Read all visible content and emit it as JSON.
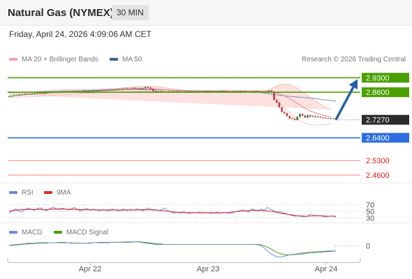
{
  "header": {
    "title": "Natural Gas (NYMEX)",
    "timeframe": "30 MIN"
  },
  "datetime": "Friday, April 24, 2026 4:09:06 AM CET",
  "legend": {
    "ma20": "MA 20 + Bollinger Bands",
    "ma50": "MA 50",
    "credit": "Research © 2026 Trading Central",
    "rsi": "RSI",
    "rsi_ma": "9MA",
    "macd": "MACD",
    "macd_signal": "MACD Signal"
  },
  "colors": {
    "candle": "#c53b3b",
    "ma20": "#f08080",
    "ma50": "#7a94b8",
    "bollinger_fill": "#fcd6d6",
    "resistance": "#49a000",
    "pivot": "#2e6fe0",
    "support": "#f08080",
    "last_price": "#2b2b2b",
    "arrow": "#2a5fa5",
    "rsi": "#6b8bdc",
    "rsi_ma": "#e12a2a",
    "macd": "#6b8bdc",
    "macd_signal": "#49a000"
  },
  "chart_data": [
    {
      "type": "candlestick",
      "title": "Natural Gas (NYMEX) 30 MIN",
      "x_ticks": [
        "Apr 22",
        "Apr 23",
        "Apr 24"
      ],
      "ylim": [
        2.46,
        2.945
      ],
      "close": [
        2.84,
        2.842,
        2.845,
        2.846,
        2.848,
        2.849,
        2.851,
        2.852,
        2.85,
        2.853,
        2.855,
        2.855,
        2.856,
        2.853,
        2.857,
        2.859,
        2.86,
        2.862,
        2.86,
        2.858,
        2.861,
        2.864,
        2.864,
        2.863,
        2.862,
        2.864,
        2.865,
        2.863,
        2.864,
        2.867,
        2.865,
        2.866,
        2.866,
        2.868,
        2.868,
        2.869,
        2.87,
        2.869,
        2.871,
        2.872,
        2.872,
        2.874,
        2.875,
        2.876,
        2.877,
        2.879,
        2.878,
        2.877,
        2.881,
        2.879,
        2.876,
        2.879,
        2.88,
        2.885,
        2.883,
        2.876,
        2.866,
        2.865,
        2.865,
        2.864,
        2.861,
        2.863,
        2.864,
        2.862,
        2.864,
        2.864,
        2.862,
        2.862,
        2.863,
        2.861,
        2.864,
        2.863,
        2.862,
        2.863,
        2.861,
        2.861,
        2.865,
        2.864,
        2.865,
        2.863,
        2.862,
        2.865,
        2.865,
        2.867,
        2.865,
        2.862,
        2.864,
        2.864,
        2.865,
        2.866,
        2.864,
        2.866,
        2.862,
        2.862,
        2.865,
        2.864,
        2.866,
        2.862,
        2.863,
        2.861,
        2.861,
        2.868,
        2.862,
        2.823,
        2.81,
        2.787,
        2.765,
        2.759,
        2.745,
        2.734,
        2.732,
        2.726,
        2.741,
        2.755,
        2.747,
        2.738,
        2.749,
        2.742,
        2.745,
        2.741,
        2.742,
        2.738,
        2.737,
        2.735,
        2.734,
        2.734,
        2.733,
        2.727
      ],
      "ma20": [
        2.841,
        2.842,
        2.843,
        2.844,
        2.845,
        2.846,
        2.847,
        2.848,
        2.849,
        2.85,
        2.851,
        2.852,
        2.853,
        2.854,
        2.855,
        2.856,
        2.857,
        2.858,
        2.858,
        2.859,
        2.859,
        2.86,
        2.86,
        2.861,
        2.861,
        2.862,
        2.862,
        2.862,
        2.863,
        2.863,
        2.864,
        2.864,
        2.865,
        2.865,
        2.866,
        2.866,
        2.867,
        2.867,
        2.868,
        2.868,
        2.869,
        2.869,
        2.87,
        2.871,
        2.871,
        2.872,
        2.873,
        2.873,
        2.874,
        2.875,
        2.875,
        2.876,
        2.876,
        2.876,
        2.877,
        2.877,
        2.876,
        2.875,
        2.874,
        2.873,
        2.872,
        2.871,
        2.87,
        2.869,
        2.869,
        2.868,
        2.868,
        2.867,
        2.867,
        2.866,
        2.866,
        2.865,
        2.865,
        2.864,
        2.864,
        2.864,
        2.864,
        2.864,
        2.864,
        2.864,
        2.864,
        2.864,
        2.864,
        2.864,
        2.864,
        2.864,
        2.864,
        2.864,
        2.864,
        2.864,
        2.864,
        2.864,
        2.864,
        2.864,
        2.864,
        2.864,
        2.864,
        2.864,
        2.864,
        2.864,
        2.864,
        2.863,
        2.862,
        2.86,
        2.857,
        2.853,
        2.848,
        2.842,
        2.836,
        2.829,
        2.822,
        2.814,
        2.806,
        2.798,
        2.79,
        2.783,
        2.776,
        2.77,
        2.765,
        2.76,
        2.756,
        2.752,
        2.749,
        2.746,
        2.744,
        2.741
      ],
      "bb_upper": [
        2.849,
        2.85,
        2.851,
        2.852,
        2.853,
        2.854,
        2.856,
        2.858,
        2.859,
        2.861,
        2.862,
        2.864,
        2.865,
        2.866,
        2.867,
        2.868,
        2.869,
        2.87,
        2.871,
        2.871,
        2.871,
        2.872,
        2.872,
        2.872,
        2.872,
        2.872,
        2.872,
        2.872,
        2.872,
        2.872,
        2.872,
        2.873,
        2.873,
        2.873,
        2.874,
        2.874,
        2.875,
        2.875,
        2.876,
        2.877,
        2.877,
        2.878,
        2.879,
        2.88,
        2.881,
        2.882,
        2.883,
        2.884,
        2.885,
        2.886,
        2.887,
        2.888,
        2.889,
        2.889,
        2.889,
        2.889,
        2.888,
        2.887,
        2.886,
        2.885,
        2.883,
        2.881,
        2.879,
        2.877,
        2.875,
        2.873,
        2.872,
        2.871,
        2.87,
        2.869,
        2.868,
        2.868,
        2.868,
        2.868,
        2.868,
        2.868,
        2.868,
        2.868,
        2.868,
        2.868,
        2.868,
        2.868,
        2.868,
        2.868,
        2.868,
        2.868,
        2.868,
        2.868,
        2.868,
        2.868,
        2.868,
        2.868,
        2.868,
        2.868,
        2.868,
        2.868,
        2.868,
        2.868,
        2.868,
        2.868,
        2.869,
        2.873,
        2.878,
        2.884,
        2.89,
        2.895,
        2.898,
        2.899,
        2.899,
        2.897,
        2.893,
        2.887,
        2.88,
        2.872,
        2.863,
        2.854,
        2.845,
        2.836,
        2.827,
        2.818,
        2.81,
        2.802,
        2.795,
        2.788,
        2.781,
        2.776
      ],
      "bb_lower": [
        2.833,
        2.834,
        2.835,
        2.836,
        2.837,
        2.838,
        2.838,
        2.838,
        2.839,
        2.839,
        2.84,
        2.84,
        2.841,
        2.842,
        2.843,
        2.844,
        2.845,
        2.846,
        2.845,
        2.847,
        2.847,
        2.848,
        2.848,
        2.85,
        2.85,
        2.852,
        2.852,
        2.852,
        2.854,
        2.854,
        2.856,
        2.855,
        2.857,
        2.857,
        2.858,
        2.858,
        2.859,
        2.859,
        2.86,
        2.859,
        2.861,
        2.86,
        2.861,
        2.862,
        2.861,
        2.862,
        2.863,
        2.862,
        2.863,
        2.864,
        2.863,
        2.864,
        2.863,
        2.863,
        2.865,
        2.865,
        2.864,
        2.863,
        2.862,
        2.861,
        2.861,
        2.861,
        2.861,
        2.861,
        2.863,
        2.863,
        2.864,
        2.863,
        2.864,
        2.863,
        2.864,
        2.862,
        2.862,
        2.86,
        2.86,
        2.86,
        2.86,
        2.86,
        2.86,
        2.86,
        2.86,
        2.86,
        2.86,
        2.86,
        2.86,
        2.86,
        2.86,
        2.86,
        2.86,
        2.86,
        2.86,
        2.86,
        2.86,
        2.86,
        2.86,
        2.86,
        2.86,
        2.86,
        2.86,
        2.86,
        2.859,
        2.853,
        2.846,
        2.836,
        2.824,
        2.811,
        2.798,
        2.785,
        2.773,
        2.761,
        2.751,
        2.741,
        2.732,
        2.724,
        2.717,
        2.712,
        2.707,
        2.704,
        2.703,
        2.702,
        2.702,
        2.702,
        2.703,
        2.704,
        2.707,
        2.706
      ],
      "ma50_x": [
        0,
        127
      ],
      "ma50": [
        2.857,
        2.861,
        2.864,
        2.868,
        2.872,
        2.873,
        2.872,
        2.868,
        2.866,
        2.864,
        2.858,
        2.842,
        2.832,
        2.817
      ],
      "levels": [
        {
          "price": 2.93,
          "label": "2.9300",
          "kind": "resistance"
        },
        {
          "price": 2.86,
          "label": "2.8600",
          "kind": "resistance"
        },
        {
          "price": 2.727,
          "label": "2.7270",
          "kind": "last"
        },
        {
          "price": 2.64,
          "label": "2.6400",
          "kind": "pivot"
        },
        {
          "price": 2.53,
          "label": "2.5300",
          "kind": "support"
        },
        {
          "price": 2.46,
          "label": "2.4600",
          "kind": "support"
        }
      ],
      "projection": {
        "from": 2.727,
        "to": 2.93
      }
    },
    {
      "type": "line",
      "title": "RSI",
      "y_ticks": [
        70,
        50,
        30
      ],
      "ylim": [
        20,
        80
      ],
      "series": [
        {
          "name": "RSI",
          "values": [
            44,
            52,
            58,
            51,
            48,
            55,
            60,
            57,
            53,
            58,
            61,
            56,
            52,
            57,
            63,
            59,
            55,
            60,
            57,
            54,
            58,
            62,
            55,
            51,
            56,
            59,
            53,
            57,
            55,
            52,
            56,
            53,
            50,
            57,
            54,
            51,
            55,
            57,
            52,
            56,
            54,
            58,
            55,
            51,
            57,
            60,
            53,
            56,
            52,
            55,
            60,
            52,
            48,
            44,
            47,
            45,
            49,
            46,
            43,
            47,
            45,
            48,
            44,
            47,
            45,
            43,
            46,
            48,
            44,
            47,
            45,
            43,
            46,
            50,
            52,
            55,
            51,
            48,
            58,
            54,
            51,
            57,
            53,
            62,
            56,
            52,
            48,
            50,
            46,
            43,
            40,
            37,
            35,
            36,
            34,
            33,
            36,
            42,
            38,
            35,
            37,
            34,
            33,
            35,
            36,
            32
          ]
        },
        {
          "name": "9MA",
          "values": [
            50,
            52,
            53,
            54,
            55,
            55,
            56,
            56,
            56,
            56,
            56,
            55,
            55,
            56,
            57,
            57,
            57,
            57,
            57,
            56,
            56,
            56,
            56,
            55,
            55,
            55,
            55,
            55,
            54,
            54,
            54,
            54,
            54,
            54,
            54,
            54,
            53,
            54,
            54,
            54,
            54,
            54,
            55,
            55,
            55,
            55,
            55,
            54,
            53,
            52,
            51,
            50,
            49,
            48,
            47,
            47,
            46,
            46,
            46,
            46,
            46,
            46,
            46,
            46,
            46,
            46,
            45,
            45,
            45,
            46,
            46,
            47,
            48,
            49,
            50,
            51,
            52,
            52,
            53,
            53,
            53,
            53,
            52,
            51,
            50,
            49,
            47,
            45,
            43,
            42,
            40,
            39,
            37,
            36,
            36,
            35,
            35,
            36,
            36,
            37,
            36,
            36,
            35,
            35,
            35,
            35
          ]
        }
      ]
    },
    {
      "type": "line",
      "title": "MACD",
      "y_ticks": [
        0
      ],
      "ylim": [
        -0.03,
        0.015
      ],
      "series": [
        {
          "name": "MACD",
          "values": [
            0.001,
            0.002,
            0.003,
            0.003,
            0.004,
            0.005,
            0.006,
            0.006,
            0.006,
            0.007,
            0.007,
            0.007,
            0.007,
            0.007,
            0.007,
            0.007,
            0.008,
            0.008,
            0.008,
            0.007,
            0.006,
            0.006,
            0.006,
            0.006,
            0.006,
            0.006,
            0.007,
            0.007,
            0.007,
            0.008,
            0.008,
            0.008,
            0.008,
            0.008,
            0.008,
            0.008,
            0.008,
            0.009,
            0.009,
            0.009,
            0.009,
            0.009,
            0.008,
            0.007,
            0.006,
            0.005,
            0.004,
            0.003,
            0.003,
            0.003,
            0.003,
            0.003,
            0.003,
            0.003,
            0.003,
            0.003,
            0.003,
            0.003,
            0.003,
            0.003,
            0.003,
            0.003,
            0.003,
            0.003,
            0.003,
            0.003,
            0.003,
            0.003,
            0.003,
            0.003,
            0.003,
            0.003,
            0.003,
            0.003,
            0.003,
            0.003,
            0.003,
            0.003,
            0.003,
            0.003,
            0.002,
            0.0,
            -0.005,
            -0.012,
            -0.018,
            -0.022,
            -0.025,
            -0.026,
            -0.025,
            -0.023,
            -0.021,
            -0.02,
            -0.019,
            -0.018,
            -0.017,
            -0.016,
            -0.015,
            -0.015,
            -0.014,
            -0.014,
            -0.013,
            -0.013,
            -0.012,
            -0.012,
            -0.012,
            -0.012
          ]
        },
        {
          "name": "MACD Signal",
          "values": [
            0.001,
            0.001,
            0.002,
            0.002,
            0.003,
            0.004,
            0.004,
            0.005,
            0.005,
            0.006,
            0.006,
            0.006,
            0.006,
            0.007,
            0.007,
            0.007,
            0.007,
            0.007,
            0.007,
            0.007,
            0.007,
            0.006,
            0.006,
            0.006,
            0.006,
            0.006,
            0.006,
            0.007,
            0.007,
            0.007,
            0.007,
            0.007,
            0.007,
            0.008,
            0.008,
            0.008,
            0.008,
            0.008,
            0.008,
            0.008,
            0.009,
            0.009,
            0.009,
            0.008,
            0.008,
            0.007,
            0.006,
            0.005,
            0.004,
            0.004,
            0.003,
            0.003,
            0.003,
            0.003,
            0.003,
            0.003,
            0.003,
            0.003,
            0.003,
            0.003,
            0.003,
            0.003,
            0.003,
            0.003,
            0.003,
            0.003,
            0.003,
            0.003,
            0.003,
            0.003,
            0.003,
            0.003,
            0.003,
            0.003,
            0.003,
            0.003,
            0.003,
            0.003,
            0.003,
            0.003,
            0.003,
            0.002,
            0.0,
            -0.003,
            -0.007,
            -0.011,
            -0.015,
            -0.018,
            -0.02,
            -0.021,
            -0.021,
            -0.021,
            -0.02,
            -0.019,
            -0.019,
            -0.018,
            -0.017,
            -0.016,
            -0.016,
            -0.015,
            -0.015,
            -0.014,
            -0.014,
            -0.013,
            -0.013,
            -0.012
          ]
        }
      ]
    }
  ]
}
